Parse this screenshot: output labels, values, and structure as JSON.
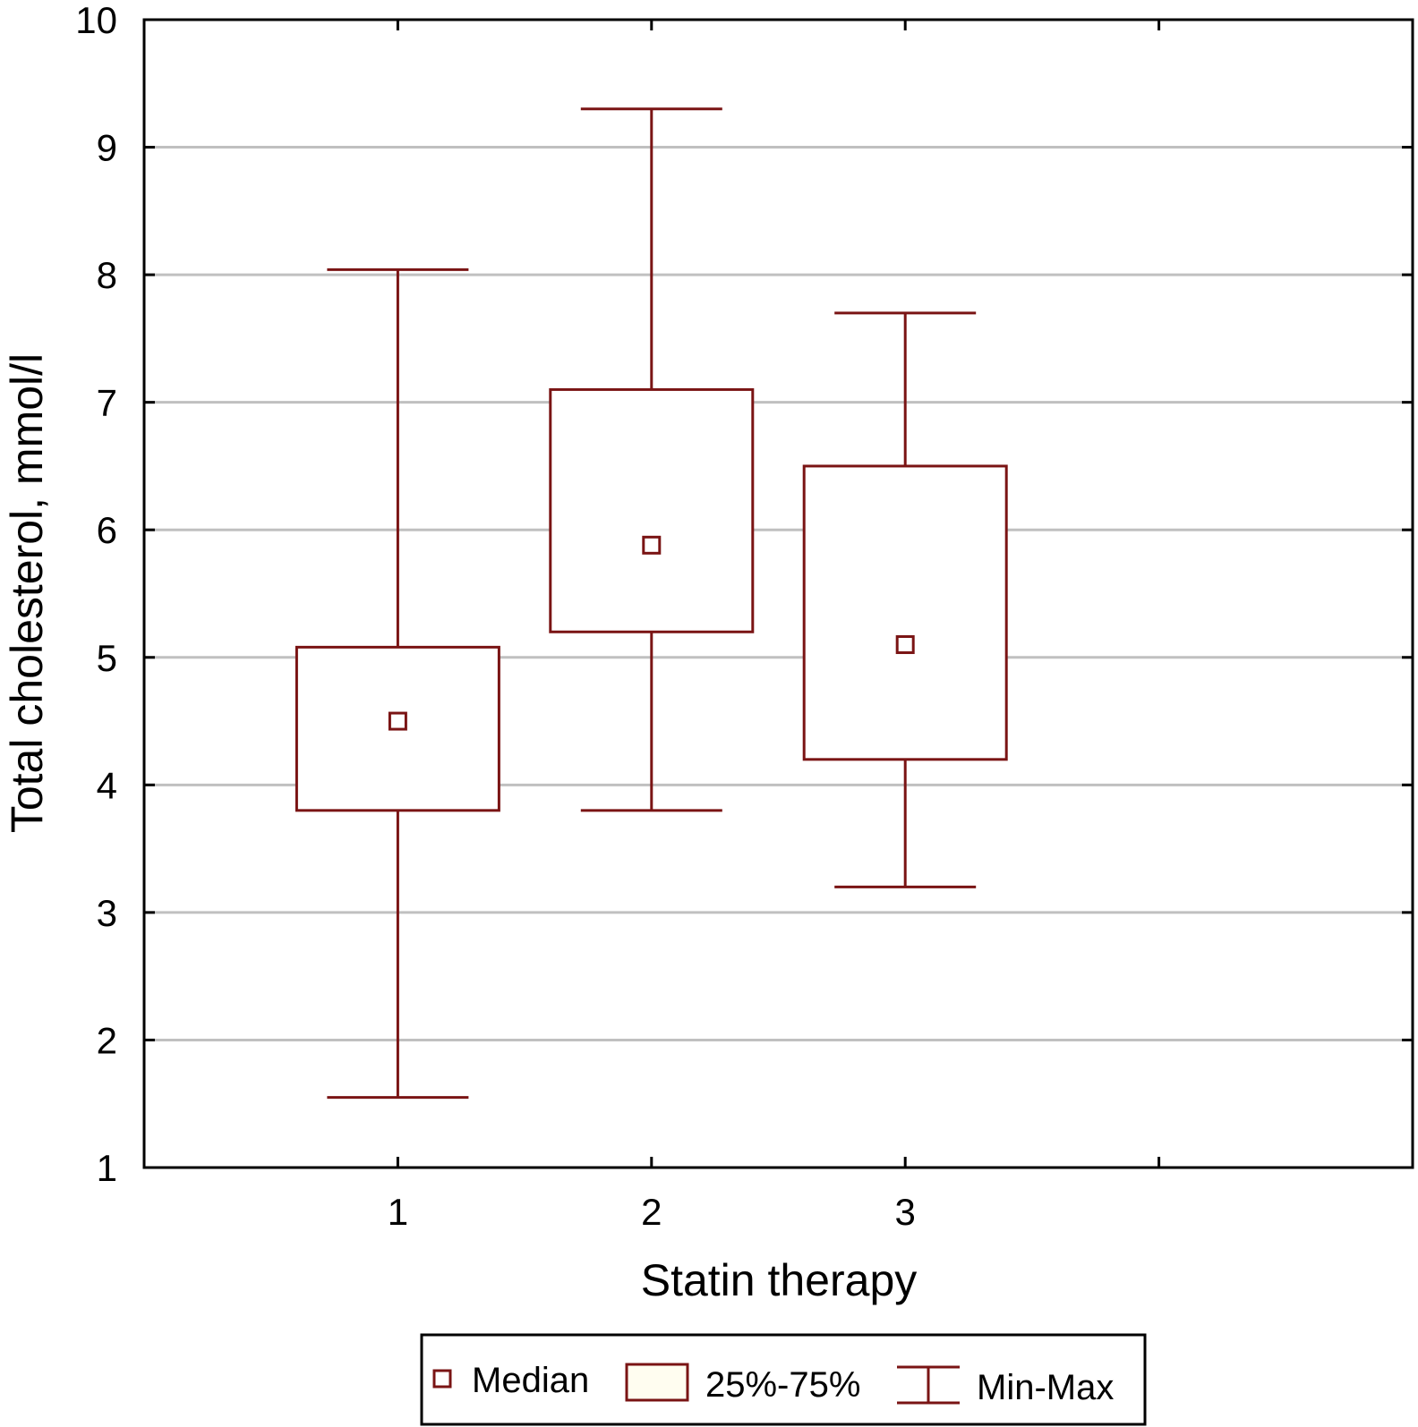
{
  "chart_data": {
    "type": "boxplot",
    "xlabel": "Statin therapy",
    "ylabel": "Total cholesterol, mmol/l",
    "categories": [
      "1",
      "2",
      "3"
    ],
    "ylim": [
      1,
      10
    ],
    "yticks": [
      "1",
      "2",
      "3",
      "4",
      "5",
      "6",
      "7",
      "8",
      "9",
      "10"
    ],
    "grid": "horizontal",
    "boxes": [
      {
        "category": "1",
        "min": 1.55,
        "q1": 3.8,
        "median": 4.5,
        "q3": 5.08,
        "max": 8.04
      },
      {
        "category": "2",
        "min": 3.8,
        "q1": 5.2,
        "median": 5.88,
        "q3": 7.1,
        "max": 9.3
      },
      {
        "category": "3",
        "min": 3.2,
        "q1": 4.2,
        "median": 5.1,
        "q3": 6.5,
        "max": 7.7
      }
    ],
    "legend": {
      "position": "bottom",
      "median_label": "Median",
      "box_label": "25%-75%",
      "whisker_label": "Min-Max"
    },
    "colors": {
      "stroke": "#7a1414",
      "grid": "#c0c0c0",
      "box_fill": "#ffffff",
      "legend_box_fill": "#fffdf0"
    }
  }
}
